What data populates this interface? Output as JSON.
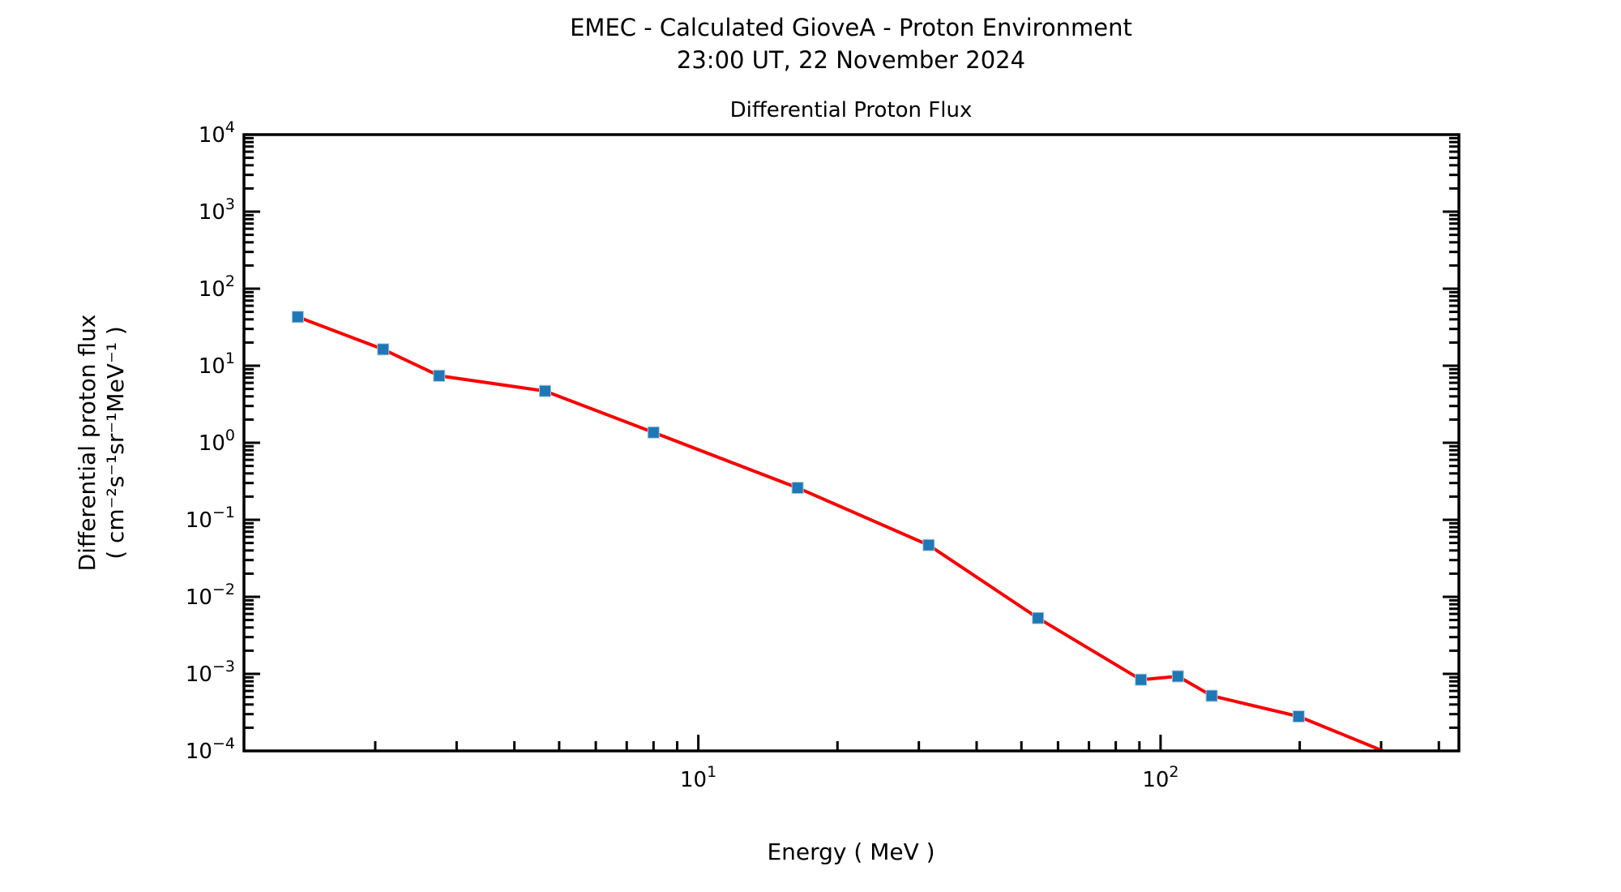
{
  "figure": {
    "suptitle_line1": "EMEC - Calculated GioveA - Proton Environment",
    "suptitle_line2": "23:00 UT, 22 November 2024"
  },
  "chart_data": {
    "type": "line",
    "title": "Differential Proton Flux",
    "xlabel": "Energy ( MeV )",
    "ylabel_line1": "Differential proton flux",
    "ylabel_line2": "( cm⁻²s⁻¹sr⁻¹MeV⁻¹ )",
    "xscale": "log",
    "yscale": "log",
    "xlim": [
      1.04,
      442
    ],
    "ylim": [
      0.0001,
      10000
    ],
    "grid": false,
    "legend": null,
    "series": [
      {
        "name": "differential proton flux",
        "x": [
          1.36,
          2.08,
          2.75,
          4.66,
          8.0,
          16.4,
          31.5,
          54.3,
          90.7,
          109,
          129,
          199,
          316
        ],
        "y": [
          43,
          16.3,
          7.4,
          4.7,
          1.36,
          0.26,
          0.047,
          0.0053,
          0.00084,
          0.00093,
          0.00052,
          0.00028,
          9e-05
        ],
        "line_color": "#f80000",
        "marker": "square",
        "marker_color": "#1f77b4"
      }
    ],
    "x_major_ticks": [
      {
        "value": 10,
        "base": "10",
        "exp": "1"
      },
      {
        "value": 100,
        "base": "10",
        "exp": "2"
      }
    ],
    "y_major_ticks": [
      {
        "value": 10000,
        "base": "10",
        "exp": "4"
      },
      {
        "value": 1000,
        "base": "10",
        "exp": "3"
      },
      {
        "value": 100,
        "base": "10",
        "exp": "2"
      },
      {
        "value": 10,
        "base": "10",
        "exp": "1"
      },
      {
        "value": 1,
        "base": "10",
        "exp": "0"
      },
      {
        "value": 0.1,
        "base": "10",
        "exp": "−1"
      },
      {
        "value": 0.01,
        "base": "10",
        "exp": "−2"
      },
      {
        "value": 0.001,
        "base": "10",
        "exp": "−3"
      },
      {
        "value": 0.0001,
        "base": "10",
        "exp": "−4"
      }
    ],
    "axis_color": "#000000",
    "background": "#ffffff"
  }
}
